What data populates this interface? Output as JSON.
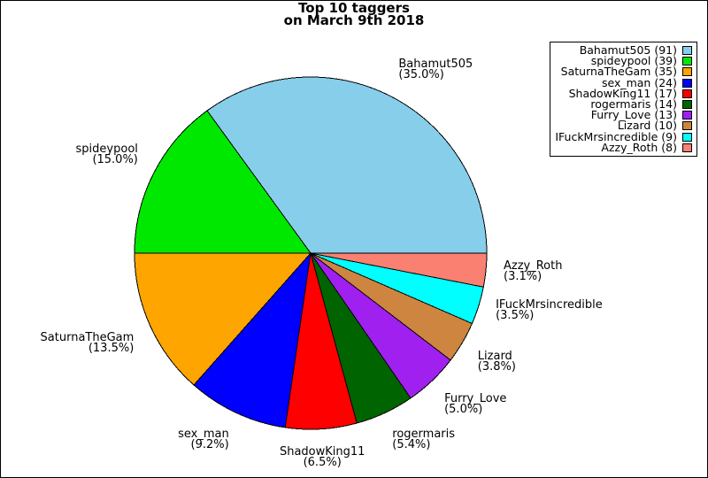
{
  "chart_data": {
    "type": "pie",
    "title": "Top 10 taggers on March 9th 2018",
    "title_lines": [
      "Top 10 taggers",
      "on March 9th 2018"
    ],
    "total": 260,
    "start_angle_deg": 0,
    "direction": "counterclockwise",
    "label_distance": 1.1,
    "legend_position": "upper right",
    "series": [
      {
        "name": "Bahamut505",
        "count": 91,
        "pct_label": "35.0%",
        "color": "#87CEEB"
      },
      {
        "name": "spideypool",
        "count": 39,
        "pct_label": "15.0%",
        "color": "#00E800"
      },
      {
        "name": "SaturnaTheGam",
        "count": 35,
        "pct_label": "13.5%",
        "color": "#FFA500"
      },
      {
        "name": "sex_man",
        "count": 24,
        "pct_label": "9.2%",
        "color": "#0000FF"
      },
      {
        "name": "ShadowKing11",
        "count": 17,
        "pct_label": "6.5%",
        "color": "#FF0000"
      },
      {
        "name": "rogermaris",
        "count": 14,
        "pct_label": "5.4%",
        "color": "#006400"
      },
      {
        "name": "Furry_Love",
        "count": 13,
        "pct_label": "5.0%",
        "color": "#A020F0"
      },
      {
        "name": "Lizard",
        "count": 10,
        "pct_label": "3.8%",
        "color": "#CD853F"
      },
      {
        "name": "IFuckMrsincredible",
        "count": 9,
        "pct_label": "3.5%",
        "color": "#00FFFF"
      },
      {
        "name": "Azzy_Roth",
        "count": 8,
        "pct_label": "3.1%",
        "color": "#FA8072"
      }
    ]
  },
  "colors": {
    "background": "#FFFFFF",
    "frame_border": "#000000",
    "slice_edge": "#000000",
    "text": "#000000",
    "legend_border": "#000000"
  }
}
